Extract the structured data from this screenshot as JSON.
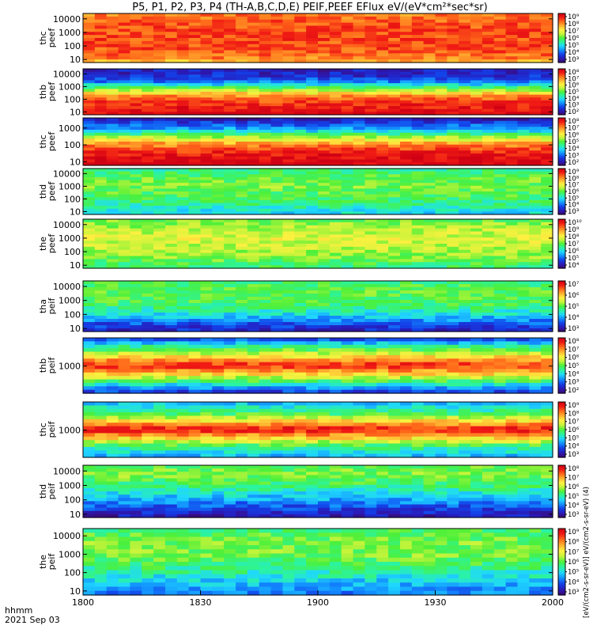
{
  "title": "P5, P1, P2, P3, P4 (TH-A,B,C,D,E) PEIF,PEEF EFlux eV/(eV*cm²*sec*sr)",
  "time_axis_label": "hhmm",
  "date_label": "2021 Sep 03",
  "colorbar_caption": "[eV/(cm2-s-sr-eV)] eV/(cm2-s-sr-eV) (4)",
  "colors": {
    "colormap": [
      "#3c0a6e",
      "#2a1ab8",
      "#1340e8",
      "#128dff",
      "#1fd6ff",
      "#2bf4a0",
      "#4cf03a",
      "#c8f43a",
      "#fff040",
      "#ffb030",
      "#ff6a1a",
      "#f01a14",
      "#d00014"
    ],
    "background": "#ffffff",
    "axis": "#000000"
  },
  "chart_data": {
    "type": "heatmap",
    "x_ticks": [
      "1800",
      "1830",
      "1900",
      "1930",
      "2000"
    ],
    "x_tick_values": [
      0,
      30,
      60,
      90,
      120
    ],
    "x_range": [
      0,
      120
    ],
    "panels": [
      {
        "probe": "thc",
        "product": "peef",
        "ylabel": "thc\npeef",
        "y_ticks": [
          "10000",
          "1000",
          "100",
          "10"
        ],
        "y_range": [
          6,
          25000
        ],
        "colorbar_ticks": [
          "10⁹",
          "10⁸",
          "10⁷",
          "10⁶",
          "10⁵",
          "10⁴",
          "10³"
        ],
        "profile": [
          [
            0.0,
            0.72
          ],
          [
            0.1,
            0.82
          ],
          [
            0.25,
            0.86
          ],
          [
            0.5,
            0.87
          ],
          [
            0.8,
            0.86
          ],
          [
            1.0,
            0.8
          ]
        ]
      },
      {
        "probe": "thb",
        "product": "peef",
        "ylabel": "thb\npeef",
        "y_ticks": [
          "10000",
          "1000",
          "100",
          "10"
        ],
        "y_range": [
          6,
          25000
        ],
        "colorbar_ticks": [
          "10⁸",
          "10⁷",
          "10⁶",
          "10⁵",
          "10⁴",
          "10³",
          "10²"
        ],
        "profile": [
          [
            0.0,
            0.98
          ],
          [
            0.12,
            0.95
          ],
          [
            0.25,
            0.9
          ],
          [
            0.4,
            0.8
          ],
          [
            0.55,
            0.55
          ],
          [
            0.7,
            0.25
          ],
          [
            0.85,
            0.12
          ],
          [
            1.0,
            0.08
          ]
        ]
      },
      {
        "probe": "thc",
        "product": "peef",
        "ylabel": "thc\npeef",
        "y_ticks": [
          "1000",
          "100",
          "10"
        ],
        "y_range": [
          6,
          4000
        ],
        "colorbar_ticks": [
          "10⁸",
          "10⁷",
          "10⁶",
          "10⁵",
          "10⁴",
          "10³",
          "10²"
        ],
        "profile": [
          [
            0.0,
            0.99
          ],
          [
            0.15,
            0.97
          ],
          [
            0.3,
            0.9
          ],
          [
            0.45,
            0.78
          ],
          [
            0.6,
            0.55
          ],
          [
            0.75,
            0.3
          ],
          [
            0.9,
            0.15
          ],
          [
            1.0,
            0.05
          ]
        ]
      },
      {
        "probe": "thd",
        "product": "peef",
        "ylabel": "thd\npeef",
        "y_ticks": [
          "10000",
          "1000",
          "100",
          "10"
        ],
        "y_range": [
          6,
          25000
        ],
        "colorbar_ticks": [
          "10⁹",
          "10⁸",
          "10⁷",
          "10⁶",
          "10⁵",
          "10⁴",
          "10³"
        ],
        "profile": [
          [
            0.0,
            0.33
          ],
          [
            0.2,
            0.42
          ],
          [
            0.4,
            0.48
          ],
          [
            0.6,
            0.52
          ],
          [
            0.8,
            0.5
          ],
          [
            1.0,
            0.42
          ]
        ]
      },
      {
        "probe": "the",
        "product": "peef",
        "ylabel": "the\npeef",
        "y_ticks": [
          "10000",
          "1000",
          "100",
          "10"
        ],
        "y_range": [
          6,
          25000
        ],
        "colorbar_ticks": [
          "10¹⁰",
          "10⁹",
          "10⁸",
          "10⁷",
          "10⁶",
          "10⁵",
          "10⁴"
        ],
        "profile": [
          [
            0.0,
            0.44
          ],
          [
            0.2,
            0.52
          ],
          [
            0.4,
            0.58
          ],
          [
            0.6,
            0.62
          ],
          [
            0.8,
            0.58
          ],
          [
            1.0,
            0.5
          ]
        ]
      },
      {
        "probe": "tha",
        "product": "peif",
        "ylabel": "tha\npeif",
        "y_ticks": [
          "10000",
          "1000",
          "100",
          "10"
        ],
        "y_range": [
          6,
          25000
        ],
        "colorbar_ticks": [
          "10⁷",
          "10⁶",
          "10⁵",
          "10⁴",
          "10³"
        ],
        "profile": [
          [
            0.0,
            0.1
          ],
          [
            0.15,
            0.18
          ],
          [
            0.3,
            0.32
          ],
          [
            0.5,
            0.46
          ],
          [
            0.75,
            0.5
          ],
          [
            1.0,
            0.46
          ]
        ]
      },
      {
        "probe": "thb",
        "product": "peif",
        "ylabel": "thb\npeif",
        "y_ticks": [
          "1000"
        ],
        "y_range": [
          120,
          9000
        ],
        "colorbar_ticks": [
          "10⁸",
          "10⁷",
          "10⁶",
          "10⁵",
          "10⁴",
          "10³",
          "10²"
        ],
        "profile": [
          [
            0.0,
            0.12
          ],
          [
            0.15,
            0.35
          ],
          [
            0.35,
            0.7
          ],
          [
            0.5,
            0.92
          ],
          [
            0.65,
            0.7
          ],
          [
            0.85,
            0.4
          ],
          [
            1.0,
            0.15
          ]
        ]
      },
      {
        "probe": "thc",
        "product": "peif",
        "ylabel": "thc\npeif",
        "y_ticks": [
          "1000"
        ],
        "y_range": [
          120,
          9000
        ],
        "colorbar_ticks": [
          "10⁹",
          "10⁸",
          "10⁷",
          "10⁶",
          "10⁵",
          "10⁴",
          "10³"
        ],
        "profile": [
          [
            0.0,
            0.28
          ],
          [
            0.2,
            0.45
          ],
          [
            0.38,
            0.75
          ],
          [
            0.5,
            0.95
          ],
          [
            0.62,
            0.75
          ],
          [
            0.8,
            0.45
          ],
          [
            1.0,
            0.3
          ]
        ]
      },
      {
        "probe": "thd",
        "product": "peif",
        "ylabel": "thd\npeif",
        "y_ticks": [
          "10000",
          "1000",
          "100",
          "10"
        ],
        "y_range": [
          6,
          25000
        ],
        "colorbar_ticks": [
          "10⁸",
          "10⁷",
          "10⁶",
          "10⁵",
          "10⁴",
          "10³"
        ],
        "profile": [
          [
            0.0,
            0.06
          ],
          [
            0.2,
            0.18
          ],
          [
            0.4,
            0.32
          ],
          [
            0.6,
            0.45
          ],
          [
            0.8,
            0.52
          ],
          [
            1.0,
            0.5
          ]
        ]
      },
      {
        "probe": "the",
        "product": "peif",
        "ylabel": "the\npeif",
        "y_ticks": [
          "10000",
          "1000",
          "100",
          "10"
        ],
        "y_range": [
          6,
          25000
        ],
        "colorbar_ticks": [
          "10⁹",
          "10⁸",
          "10⁷",
          "10⁶",
          "10⁵",
          "10⁴",
          "10³"
        ],
        "profile": [
          [
            0.0,
            0.22
          ],
          [
            0.2,
            0.32
          ],
          [
            0.4,
            0.44
          ],
          [
            0.6,
            0.52
          ],
          [
            0.8,
            0.52
          ],
          [
            1.0,
            0.46
          ]
        ]
      }
    ]
  }
}
